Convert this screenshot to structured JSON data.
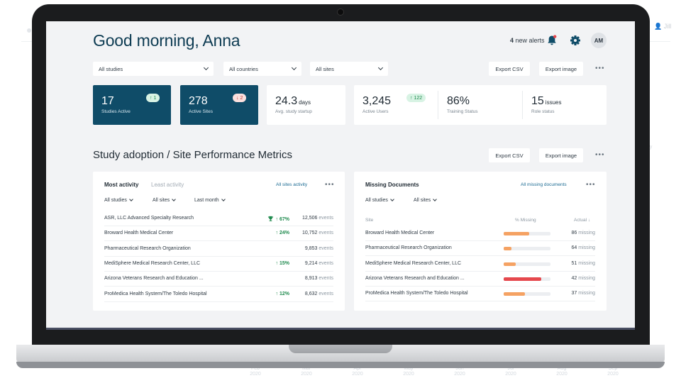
{
  "background": {
    "user_label": "Jill",
    "x_ticks": [
      [
        "Feb",
        "2020"
      ],
      [
        "Mar",
        "2020"
      ],
      [
        "Apr",
        "2020"
      ],
      [
        "May",
        "2020"
      ],
      [
        "Jun",
        "2020"
      ],
      [
        "Jul",
        "2020"
      ],
      [
        "Aug",
        "2020"
      ],
      [
        "Sep",
        "2020"
      ]
    ],
    "axis_label": "ay"
  },
  "header": {
    "greeting": "Good morning, Anna",
    "alerts_count": "4",
    "alerts_text": "new alerts",
    "avatar_initials": "AM"
  },
  "filters": {
    "studies": "All studies",
    "countries": "All countries",
    "sites": "All sites"
  },
  "actions": {
    "export_csv": "Export CSV",
    "export_image": "Export image",
    "more": "•••"
  },
  "kpis": [
    {
      "value": "17",
      "unit": "",
      "label": "Studies Active",
      "badge": "1",
      "badge_dir": "up"
    },
    {
      "value": "278",
      "unit": "",
      "label": "Active Sites",
      "badge": "2",
      "badge_dir": "down"
    },
    {
      "value": "24.3",
      "unit": "days",
      "label": "Avg. study startup"
    },
    {
      "value": "3,245",
      "unit": "",
      "label": "Active Users",
      "badge": "122",
      "badge_dir": "up"
    },
    {
      "value": "86%",
      "unit": "",
      "label": "Training Status"
    },
    {
      "value": "15",
      "unit": "issues",
      "label": "Role status"
    }
  ],
  "section": {
    "title": "Study adoption / Site Performance Metrics"
  },
  "activity": {
    "tab_active": "Most activity",
    "tab_inactive": "Least activity",
    "link": "All sites activity",
    "filters": [
      "All studies",
      "All sites",
      "Last month"
    ],
    "rows": [
      {
        "name": "ASR, LLC Advanced Specialty Research",
        "pct": "67%",
        "trophy": true,
        "events": "12,506",
        "unit": "events"
      },
      {
        "name": "Broward Health Medical Center",
        "pct": "24%",
        "trophy": false,
        "events": "10,752",
        "unit": "events"
      },
      {
        "name": "Pharmaceutical Research Organization",
        "pct": "",
        "trophy": false,
        "events": "9,853",
        "unit": "events"
      },
      {
        "name": "MediSphere Medical Research Center, LLC",
        "pct": "15%",
        "trophy": false,
        "events": "9,214",
        "unit": "events"
      },
      {
        "name": "Arizona Veterans Research and Education ...",
        "pct": "",
        "trophy": false,
        "events": "8,913",
        "unit": "events"
      },
      {
        "name": "ProMedica Health System/The Toledo Hospital",
        "pct": "12%",
        "trophy": false,
        "events": "8,632",
        "unit": "events"
      }
    ]
  },
  "missing": {
    "title": "Missing Documents",
    "link": "All missing documents",
    "filters": [
      "All studies",
      "All sites"
    ],
    "col_site": "Site",
    "col_pct": "% Missing",
    "col_actual": "Actual ↓",
    "unit": "missing",
    "rows": [
      {
        "name": "Broward Health Medical Center",
        "count": "86",
        "fraction": 0.55,
        "color": "#f5a263"
      },
      {
        "name": "Pharmaceutical Research Organization",
        "count": "64",
        "fraction": 0.17,
        "color": "#f5a263"
      },
      {
        "name": "MediSphere Medical Research Center, LLC",
        "count": "51",
        "fraction": 0.25,
        "color": "#f5a263"
      },
      {
        "name": "Arizona Veterans Research and Education ...",
        "count": "42",
        "fraction": 0.8,
        "color": "#e5484d"
      },
      {
        "name": "ProMedica Health System/The Toledo Hospital",
        "count": "37",
        "fraction": 0.45,
        "color": "#f5a263"
      }
    ]
  },
  "colors": {
    "primary": "#0f4c68",
    "up": "#1e8a4d",
    "down": "#c33b33",
    "link": "#1c6b93"
  },
  "icons": [
    "bell-icon",
    "gear-icon",
    "trophy-icon",
    "arrow-up-icon",
    "arrow-down-icon",
    "chevron-down-icon",
    "more-icon"
  ]
}
